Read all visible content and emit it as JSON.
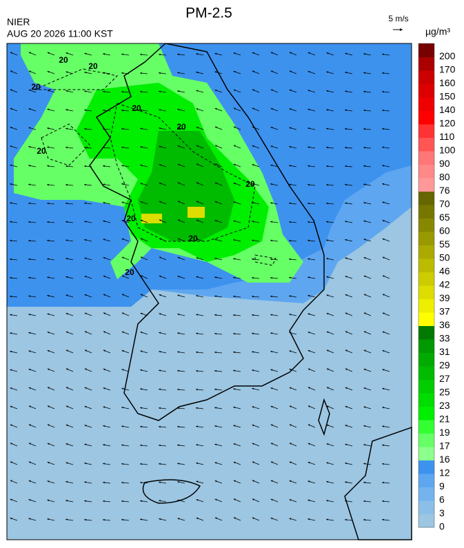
{
  "header": {
    "title": "PM-2.5",
    "source": "NIER",
    "datetime": "AUG 20 2026 11:00 KST",
    "wind_scale": "5 m/s",
    "unit": "µg/m³"
  },
  "legend": {
    "labels": [
      0,
      3,
      6,
      9,
      12,
      16,
      17,
      19,
      21,
      23,
      25,
      27,
      29,
      31,
      33,
      36,
      37,
      39,
      42,
      46,
      50,
      55,
      60,
      65,
      70,
      76,
      80,
      90,
      100,
      110,
      120,
      140,
      150,
      160,
      170,
      200
    ],
    "colors": [
      "#9cc6e2",
      "#8bbfe8",
      "#74b3ee",
      "#5ea6f0",
      "#3d92ee",
      "#8cff8c",
      "#66ff66",
      "#33ff33",
      "#00ee00",
      "#00dd00",
      "#00cc00",
      "#00bb00",
      "#00aa00",
      "#009900",
      "#007a00",
      "#ffff00",
      "#eeee00",
      "#dddd00",
      "#cccc00",
      "#bbbb00",
      "#aaaa00",
      "#999900",
      "#888800",
      "#777700",
      "#666600",
      "#ff9999",
      "#ff8888",
      "#ff7777",
      "#ff5555",
      "#ff3333",
      "#ff0000",
      "#ee0000",
      "#dd0000",
      "#cc0000",
      "#aa0000",
      "#770000"
    ]
  },
  "contour_labels": [
    "20",
    "20",
    "20",
    "20",
    "20",
    "20",
    "20",
    "20",
    "20",
    "20"
  ]
}
